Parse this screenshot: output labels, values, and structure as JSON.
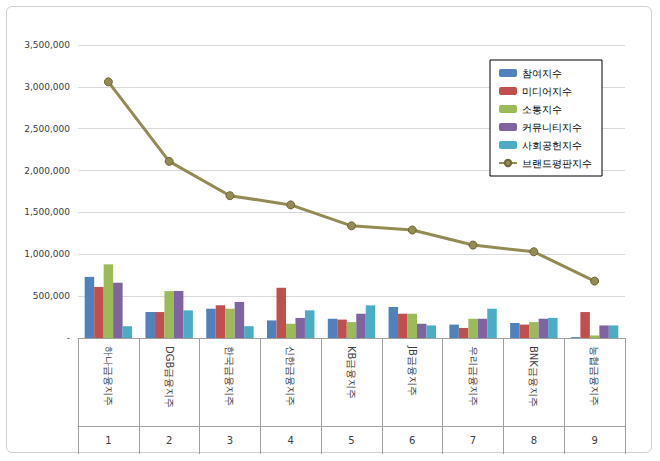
{
  "chart_data": {
    "type": "bar",
    "categories": [
      "하나금융지주",
      "DGB금융지주",
      "한국금융지주",
      "신한금융지주",
      "KB금융지주",
      "JB금융지주",
      "우리금융지주",
      "BNK금융지주",
      "농협금융지주"
    ],
    "ranks": [
      1,
      2,
      3,
      4,
      5,
      6,
      7,
      8,
      9
    ],
    "series": [
      {
        "name": "참여지수",
        "type": "bar",
        "color": "#4f81bd",
        "values": [
          730000,
          310000,
          350000,
          210000,
          230000,
          370000,
          160000,
          180000,
          10000
        ]
      },
      {
        "name": "미디어지수",
        "type": "bar",
        "color": "#c0504d",
        "values": [
          610000,
          310000,
          390000,
          600000,
          220000,
          290000,
          120000,
          160000,
          310000
        ]
      },
      {
        "name": "소통지수",
        "type": "bar",
        "color": "#9bbb59",
        "values": [
          880000,
          560000,
          350000,
          170000,
          190000,
          290000,
          230000,
          190000,
          30000
        ]
      },
      {
        "name": "커뮤니티지수",
        "type": "bar",
        "color": "#8064a2",
        "values": [
          660000,
          560000,
          430000,
          240000,
          290000,
          170000,
          230000,
          230000,
          150000
        ]
      },
      {
        "name": "사회공헌지수",
        "type": "bar",
        "color": "#4bacc6",
        "values": [
          140000,
          330000,
          140000,
          330000,
          390000,
          150000,
          350000,
          240000,
          150000
        ]
      },
      {
        "name": "브랜드평판지수",
        "type": "line",
        "color": "#948a54",
        "marker": "circle",
        "values": [
          3060000,
          2110000,
          1700000,
          1590000,
          1340000,
          1290000,
          1110000,
          1030000,
          680000
        ]
      }
    ],
    "ylim": [
      0,
      3500000
    ],
    "yticks": [
      {
        "value": 0,
        "label": "-"
      },
      {
        "value": 500000,
        "label": "500,000"
      },
      {
        "value": 1000000,
        "label": "1,000,000"
      },
      {
        "value": 1500000,
        "label": "1,500,000"
      },
      {
        "value": 2000000,
        "label": "2,000,000"
      },
      {
        "value": 2500000,
        "label": "2,500,000"
      },
      {
        "value": 3000000,
        "label": "3,000,000"
      },
      {
        "value": 3500000,
        "label": "3,500,000"
      }
    ],
    "grid": true,
    "legend": "upper right"
  }
}
